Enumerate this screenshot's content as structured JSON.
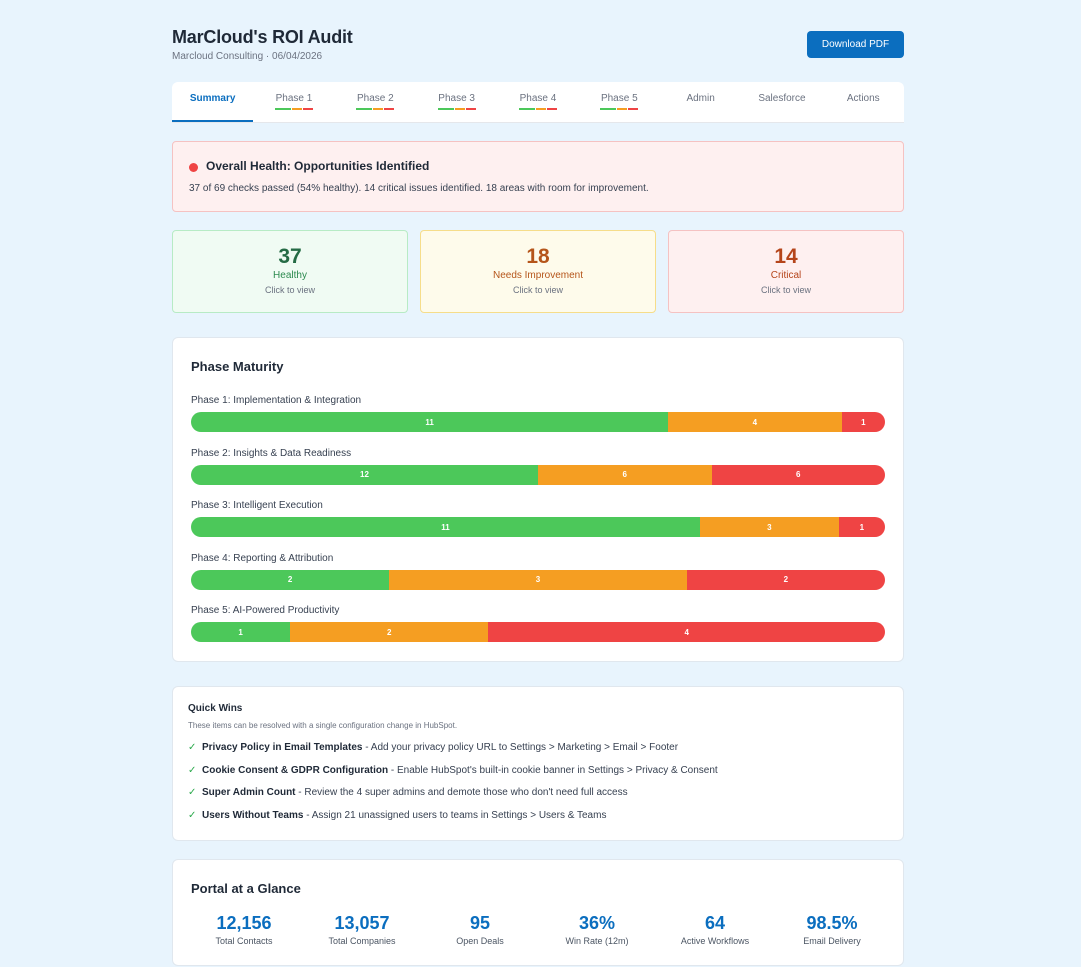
{
  "header": {
    "title": "MarCloud's ROI Audit",
    "subtitle": "Marcloud Consulting · 06/04/2026",
    "download_label": "Download PDF"
  },
  "tabs": [
    {
      "label": "Summary",
      "active": true,
      "indicators": []
    },
    {
      "label": "Phase 1",
      "active": false,
      "indicators": [
        "#4cc85a",
        "#f59e22",
        "#ef4444"
      ]
    },
    {
      "label": "Phase 2",
      "active": false,
      "indicators": [
        "#4cc85a",
        "#f59e22",
        "#ef4444"
      ]
    },
    {
      "label": "Phase 3",
      "active": false,
      "indicators": [
        "#4cc85a",
        "#f59e22",
        "#ef4444"
      ]
    },
    {
      "label": "Phase 4",
      "active": false,
      "indicators": [
        "#4cc85a",
        "#f59e22",
        "#ef4444"
      ]
    },
    {
      "label": "Phase 5",
      "active": false,
      "indicators": [
        "#4cc85a",
        "#f59e22",
        "#ef4444"
      ]
    },
    {
      "label": "Admin",
      "active": false,
      "indicators": []
    },
    {
      "label": "Salesforce",
      "active": false,
      "indicators": []
    },
    {
      "label": "Actions",
      "active": false,
      "indicators": []
    }
  ],
  "health": {
    "title": "Overall Health: Opportunities Identified",
    "description": "37 of 69 checks passed (54% healthy). 14 critical issues identified. 18 areas with room for improvement.",
    "status_color": "#ef4444"
  },
  "stats": {
    "healthy": {
      "value": "37",
      "label": "Healthy",
      "hint": "Click to view"
    },
    "needs": {
      "value": "18",
      "label": "Needs Improvement",
      "hint": "Click to view"
    },
    "critical": {
      "value": "14",
      "label": "Critical",
      "hint": "Click to view"
    }
  },
  "maturity": {
    "title": "Phase Maturity",
    "phases": [
      {
        "label": "Phase 1: Implementation & Integration",
        "healthy": 11,
        "needs": 4,
        "critical": 1
      },
      {
        "label": "Phase 2: Insights & Data Readiness",
        "healthy": 12,
        "needs": 6,
        "critical": 6
      },
      {
        "label": "Phase 3: Intelligent Execution",
        "healthy": 11,
        "needs": 3,
        "critical": 1
      },
      {
        "label": "Phase 4: Reporting & Attribution",
        "healthy": 2,
        "needs": 3,
        "critical": 2
      },
      {
        "label": "Phase 5: AI-Powered Productivity",
        "healthy": 1,
        "needs": 2,
        "critical": 4
      }
    ]
  },
  "quick_wins": {
    "title": "Quick Wins",
    "subtitle": "These items can be resolved with a single configuration change in HubSpot.",
    "check_glyph": "✓",
    "items": [
      {
        "name": "Privacy Policy in Email Templates",
        "detail": " - Add your privacy policy URL to Settings > Marketing > Email > Footer"
      },
      {
        "name": "Cookie Consent & GDPR Configuration",
        "detail": " - Enable HubSpot's built-in cookie banner in Settings > Privacy & Consent"
      },
      {
        "name": "Super Admin Count",
        "detail": " - Review the 4 super admins and demote those who don't need full access"
      },
      {
        "name": "Users Without Teams",
        "detail": " - Assign 21 unassigned users to teams in Settings > Users & Teams"
      }
    ]
  },
  "glance": {
    "title": "Portal at a Glance",
    "metrics": [
      {
        "value": "12,156",
        "label": "Total Contacts"
      },
      {
        "value": "13,057",
        "label": "Total Companies"
      },
      {
        "value": "95",
        "label": "Open Deals"
      },
      {
        "value": "36%",
        "label": "Win Rate (12m)"
      },
      {
        "value": "64",
        "label": "Active Workflows"
      },
      {
        "value": "98.5%",
        "label": "Email Delivery"
      }
    ]
  }
}
